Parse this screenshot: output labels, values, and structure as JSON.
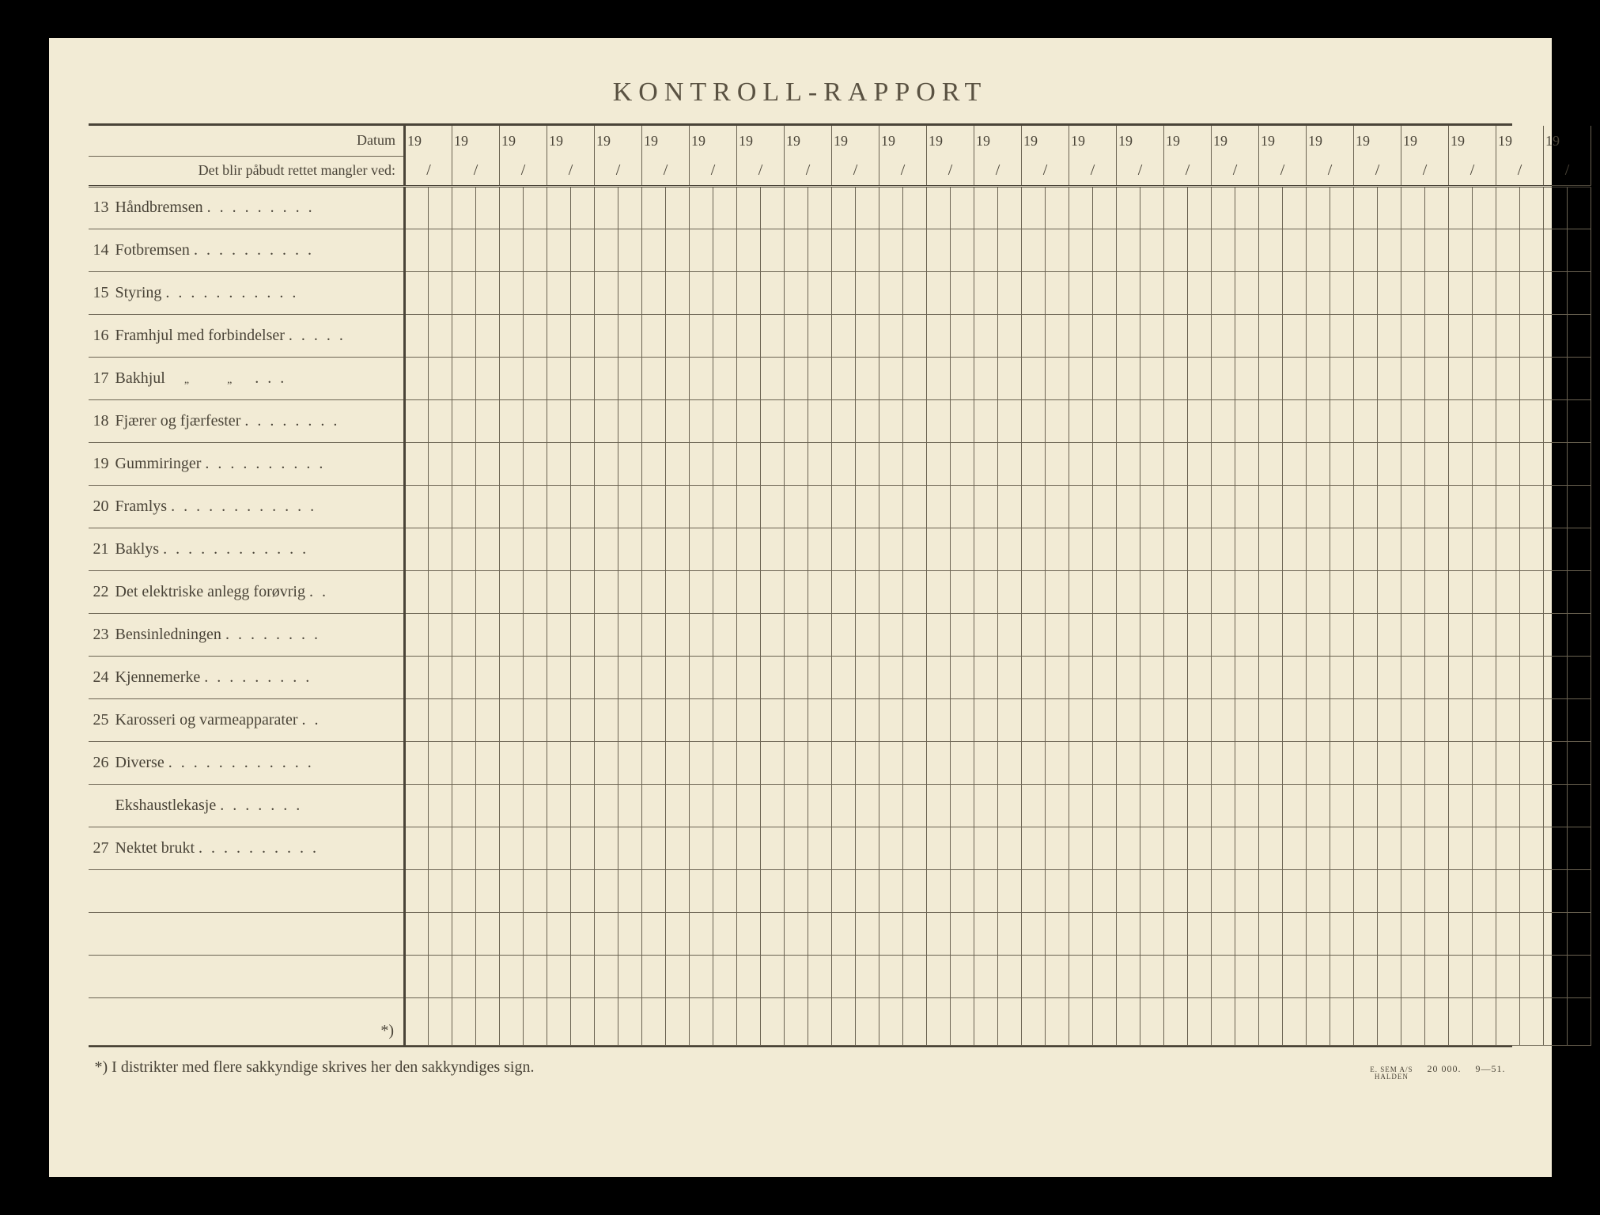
{
  "title": "KONTROLL-RAPPORT",
  "header": {
    "datum_label": "Datum",
    "sub_label": "Det blir påbudt rettet mangler ved:",
    "year_prefix": "19",
    "slash": "/",
    "column_pairs": 25
  },
  "rows": [
    {
      "num": "13",
      "text": "Håndbremsen",
      "dots": ". . . . . . . . ."
    },
    {
      "num": "14",
      "text": "Fotbremsen",
      "dots": ". . . . . . . . . ."
    },
    {
      "num": "15",
      "text": "Styring",
      "dots": ". . . . . . . . . . ."
    },
    {
      "num": "16",
      "text": "Framhjul med forbindelser",
      "dots": ". . . . ."
    },
    {
      "num": "17",
      "text": "Bakhjul",
      "ditto": true,
      "dots": ". . ."
    },
    {
      "num": "18",
      "text": "Fjærer og fjærfester",
      "dots": ". . . . . . . ."
    },
    {
      "num": "19",
      "text": "Gummiringer",
      "dots": ". . . . . . . . . ."
    },
    {
      "num": "20",
      "text": "Framlys",
      "dots": ". . . . . . . . . . . ."
    },
    {
      "num": "21",
      "text": "Baklys",
      "dots": ". . . .   . . . . . . . ."
    },
    {
      "num": "22",
      "text": "Det elektriske anlegg forøvrig",
      "dots": ". ."
    },
    {
      "num": "23",
      "text": "Bensinledningen",
      "dots": ". . . . . . . ."
    },
    {
      "num": "24",
      "text": "Kjennemerke",
      "dots": ". . .   . . . . . ."
    },
    {
      "num": "25",
      "text": "Karosseri og varmeapparater",
      "dots": ". ."
    },
    {
      "num": "26",
      "text": "Diverse",
      "dots": ". . . . . . . . . . . ."
    },
    {
      "num": "",
      "text": "Ekshaustlekasje",
      "dots": ". . . . . . ."
    },
    {
      "num": "27",
      "text": "Nektet brukt",
      "dots": ". . . . . . . . . ."
    },
    {
      "num": "",
      "text": "",
      "dots": ""
    },
    {
      "num": "",
      "text": "",
      "dots": ""
    },
    {
      "num": "",
      "text": "",
      "dots": ""
    }
  ],
  "footnote_marker": "*)",
  "footnote_text": "*)   I distrikter med flere sakkyndige skrives her den sakkyndiges sign.",
  "printer": {
    "name1": "E. SEM A/S",
    "name2": "HALDEN",
    "qty": "20 000.",
    "code": "9—51."
  },
  "colors": {
    "paper": "#f2ebd5",
    "ink": "#4a4438",
    "line": "#6b6352"
  }
}
